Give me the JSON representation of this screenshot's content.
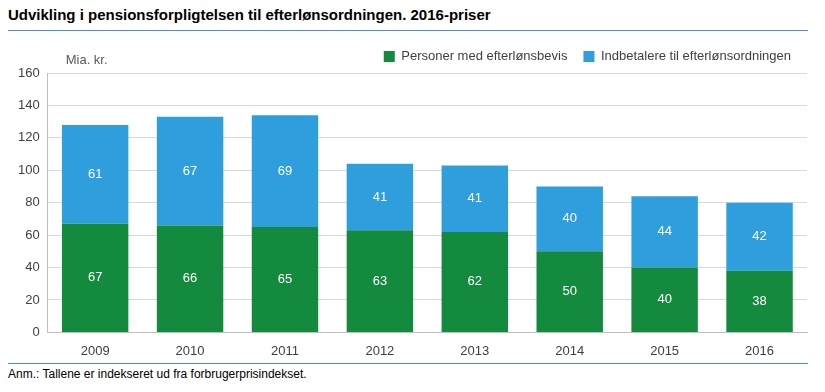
{
  "chart_data": {
    "type": "bar",
    "title": "Udvikling i pensionsforpligtelsen til efterlønsordningen. 2016-priser",
    "y_label": "Mia. kr.",
    "note": "Anm.: Tallene er indekseret ud fra forbrugerprisindekset.",
    "categories": [
      "2009",
      "2010",
      "2011",
      "2012",
      "2013",
      "2014",
      "2015",
      "2016"
    ],
    "series": [
      {
        "name": "Personer med efterlønsbevis",
        "color": "#138a3e",
        "values": [
          67,
          66,
          65,
          63,
          62,
          50,
          40,
          38
        ]
      },
      {
        "name": "Indbetalere til efterlønsordningen",
        "color": "#2e9fdc",
        "values": [
          61,
          67,
          69,
          41,
          41,
          40,
          44,
          42
        ]
      }
    ],
    "stacked": true,
    "data_labels": true,
    "ylim": [
      0,
      160
    ],
    "yticks": [
      0,
      20,
      40,
      60,
      80,
      100,
      120,
      140,
      160
    ],
    "grid": true,
    "legend": "top-right"
  }
}
